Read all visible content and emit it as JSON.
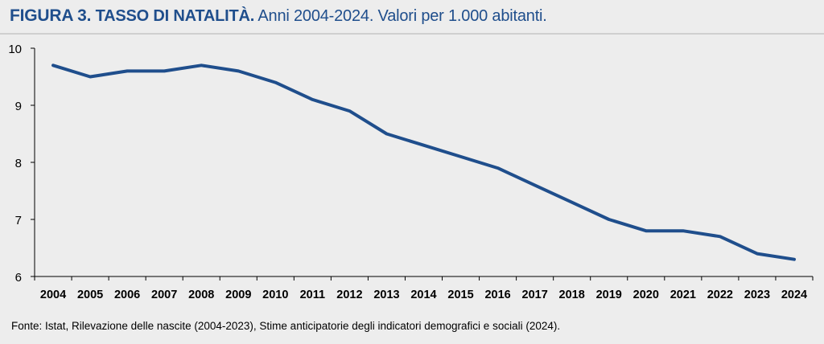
{
  "title": {
    "figure_label": "FIGURA 3.",
    "main": "TASSO DI NATALITÀ.",
    "sub": "Anni 2004-2024. Valori per 1.000 abitanti."
  },
  "source": "Fonte: Istat, Rilevazione delle nascite (2004-2023), Stime anticipatorie degli indicatori demografici e sociali (2024).",
  "colors": {
    "line": "#1f4e8c",
    "background": "#ededed",
    "axis": "#000000"
  },
  "chart_data": {
    "type": "line",
    "title": "TASSO DI NATALITÀ. Anni 2004-2024. Valori per 1.000 abitanti.",
    "xlabel": "",
    "ylabel": "",
    "x": [
      "2004",
      "2005",
      "2006",
      "2007",
      "2008",
      "2009",
      "2010",
      "2011",
      "2012",
      "2013",
      "2014",
      "2015",
      "2016",
      "2017",
      "2018",
      "2019",
      "2020",
      "2021",
      "2022",
      "2023",
      "2024"
    ],
    "series": [
      {
        "values": [
          9.7,
          9.5,
          9.6,
          9.6,
          9.7,
          9.6,
          9.4,
          9.1,
          8.9,
          8.5,
          8.3,
          8.1,
          7.9,
          7.6,
          7.3,
          7.0,
          6.8,
          6.8,
          6.7,
          6.4,
          6.3
        ]
      }
    ],
    "ylim": [
      6,
      10
    ],
    "yticks": [
      6,
      7,
      8,
      9,
      10
    ],
    "grid": false,
    "legend": "none"
  }
}
